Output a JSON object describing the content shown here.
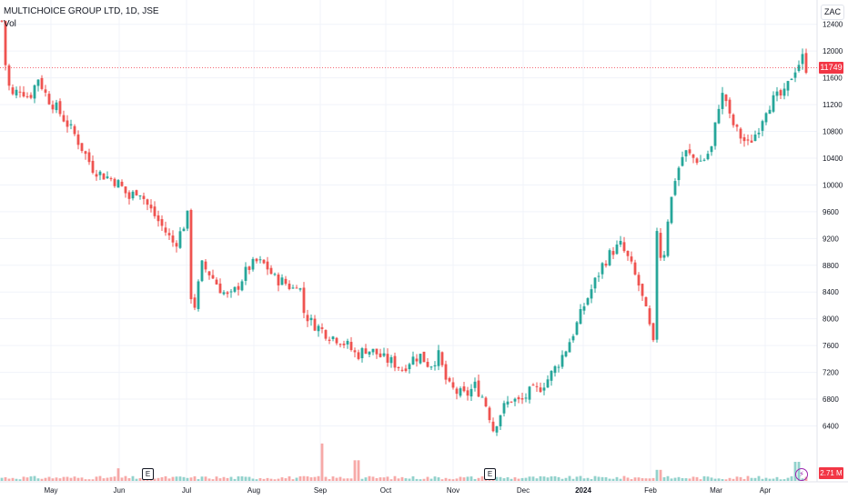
{
  "header": {
    "title": "MULTICHOICE GROUP LTD, 1D, JSE",
    "volume_label": "Vol"
  },
  "currency_label": "ZAC",
  "last_price_label": "11749",
  "last_volume_label": "2.71 M",
  "earnings_marker": "E",
  "event_icon": "lightning-icon",
  "colors": {
    "up": "#26a69a",
    "down": "#ef5350",
    "grid": "#f0f3fa",
    "price_line": "#f23645"
  },
  "chart_data": {
    "type": "candlestick",
    "ylim": [
      6000,
      12800
    ],
    "y_ticks": [
      6400,
      6800,
      7200,
      7600,
      8000,
      8400,
      8800,
      9200,
      9600,
      10000,
      10400,
      10800,
      11200,
      11600,
      12000,
      12400
    ],
    "x_ticks": [
      "May",
      "Jun",
      "Jul",
      "Aug",
      "Sep",
      "Oct",
      "Nov",
      "Dec",
      "2024",
      "Feb",
      "Mar",
      "Apr"
    ],
    "last_price": 11749,
    "grid": true,
    "close_path": [
      [
        0,
        12450
      ],
      [
        2,
        11800
      ],
      [
        5,
        11300
      ],
      [
        10,
        11450
      ],
      [
        15,
        11300
      ],
      [
        20,
        11600
      ],
      [
        25,
        11300
      ],
      [
        30,
        11150
      ],
      [
        35,
        10950
      ],
      [
        40,
        10750
      ],
      [
        45,
        10500
      ],
      [
        50,
        10250
      ],
      [
        55,
        10150
      ],
      [
        60,
        10100
      ],
      [
        65,
        10000
      ],
      [
        70,
        9800
      ],
      [
        75,
        9950
      ],
      [
        80,
        9700
      ],
      [
        85,
        9500
      ],
      [
        90,
        9300
      ],
      [
        95,
        9100
      ],
      [
        100,
        9400
      ],
      [
        103,
        9600
      ],
      [
        104,
        8350
      ],
      [
        106,
        8200
      ],
      [
        110,
        8800
      ],
      [
        115,
        8650
      ],
      [
        120,
        8450
      ],
      [
        125,
        8300
      ],
      [
        130,
        8500
      ],
      [
        135,
        8750
      ],
      [
        140,
        8850
      ],
      [
        145,
        8800
      ],
      [
        150,
        8600
      ],
      [
        155,
        8550
      ],
      [
        160,
        8450
      ],
      [
        163,
        8600
      ],
      [
        166,
        8100
      ],
      [
        170,
        7950
      ],
      [
        175,
        7850
      ],
      [
        180,
        7750
      ],
      [
        185,
        7700
      ],
      [
        190,
        7600
      ],
      [
        195,
        7450
      ],
      [
        200,
        7550
      ],
      [
        205,
        7500
      ],
      [
        210,
        7400
      ],
      [
        215,
        7350
      ],
      [
        220,
        7250
      ],
      [
        225,
        7400
      ],
      [
        230,
        7450
      ],
      [
        235,
        7300
      ],
      [
        240,
        7450
      ],
      [
        245,
        7000
      ],
      [
        250,
        6900
      ],
      [
        255,
        6850
      ],
      [
        260,
        7000
      ],
      [
        265,
        6800
      ],
      [
        268,
        6550
      ],
      [
        270,
        6350
      ],
      [
        275,
        6650
      ],
      [
        280,
        6800
      ],
      [
        285,
        6750
      ],
      [
        290,
        6900
      ],
      [
        295,
        6950
      ],
      [
        300,
        7100
      ],
      [
        305,
        7300
      ],
      [
        310,
        7550
      ],
      [
        315,
        7850
      ],
      [
        320,
        8200
      ],
      [
        325,
        8500
      ],
      [
        330,
        8800
      ],
      [
        335,
        9000
      ],
      [
        340,
        9100
      ],
      [
        345,
        8850
      ],
      [
        350,
        8500
      ],
      [
        355,
        8000
      ],
      [
        358,
        7600
      ],
      [
        360,
        9350
      ],
      [
        363,
        8750
      ],
      [
        366,
        9500
      ],
      [
        370,
        10100
      ],
      [
        375,
        10500
      ],
      [
        380,
        10400
      ],
      [
        385,
        10350
      ],
      [
        390,
        10550
      ],
      [
        394,
        11200
      ],
      [
        397,
        11400
      ],
      [
        400,
        11000
      ],
      [
        405,
        10750
      ],
      [
        410,
        10600
      ],
      [
        415,
        10800
      ],
      [
        420,
        11150
      ],
      [
        425,
        11300
      ],
      [
        430,
        11350
      ],
      [
        435,
        11700
      ],
      [
        440,
        11900
      ],
      [
        442,
        11749
      ]
    ],
    "volume_spikes": [
      {
        "t": 64,
        "volume_m": 3.3
      },
      {
        "t": 176,
        "volume_m": 9.8
      },
      {
        "t": 195,
        "volume_m": 5.4
      },
      {
        "t": 361,
        "volume_m": 2.9
      },
      {
        "t": 437,
        "volume_m": 5.0
      }
    ],
    "earnings_t": [
      80,
      268
    ]
  }
}
